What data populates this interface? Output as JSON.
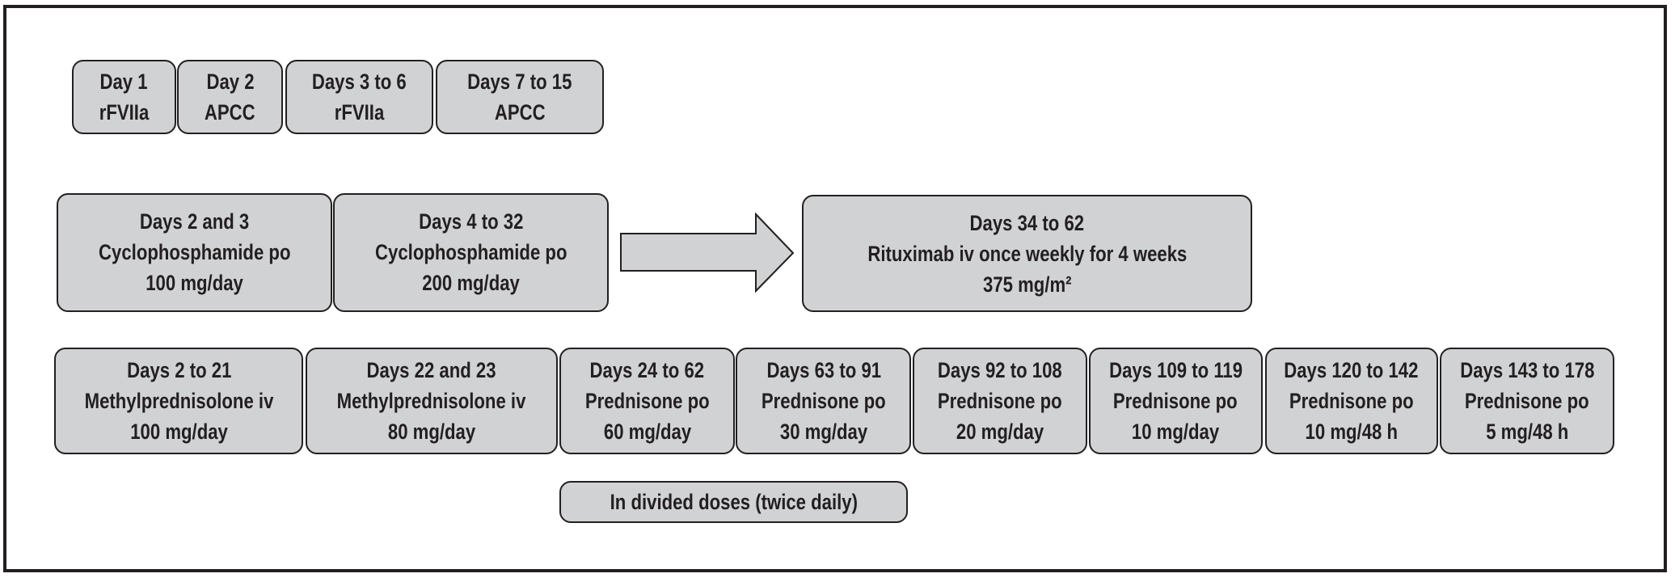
{
  "rows": [
    {
      "boxes": [
        {
          "lines": [
            "Day 1",
            "rFVIIa"
          ]
        },
        {
          "lines": [
            "Day 2",
            "APCC"
          ]
        },
        {
          "lines": [
            "Days 3 to 6",
            "rFVIIa"
          ]
        },
        {
          "lines": [
            "Days 7 to 15",
            "APCC"
          ]
        }
      ]
    },
    {
      "boxes": [
        {
          "lines": [
            "Days 2 and 3",
            "Cyclophosphamide po",
            "100 mg/day"
          ]
        },
        {
          "lines": [
            "Days 4 to 32",
            "Cyclophosphamide po",
            "200 mg/day"
          ]
        },
        {
          "lines": [
            "Days 34 to 62",
            "Rituximab iv once weekly for 4 weeks",
            "375 mg/m²"
          ]
        }
      ]
    },
    {
      "boxes": [
        {
          "lines": [
            "Days 2 to 21",
            "Methylprednisolone iv",
            "100 mg/day"
          ]
        },
        {
          "lines": [
            "Days 22 and 23",
            "Methylprednisolone iv",
            "80 mg/day"
          ]
        },
        {
          "lines": [
            "Days 24 to 62",
            "Prednisone po",
            "60 mg/day"
          ]
        },
        {
          "lines": [
            "Days 63 to 91",
            "Prednisone po",
            "30 mg/day"
          ]
        },
        {
          "lines": [
            "Days 92 to 108",
            "Prednisone po",
            "20 mg/day"
          ]
        },
        {
          "lines": [
            "Days 109 to 119",
            "Prednisone po",
            "10 mg/day"
          ]
        },
        {
          "lines": [
            "Days 120 to 142",
            "Prednisone po",
            "10 mg/48 h"
          ]
        },
        {
          "lines": [
            "Days 143 to 178",
            "Prednisone po",
            "5 mg/48 h"
          ]
        }
      ]
    }
  ],
  "note": "In divided doses (twice daily)"
}
